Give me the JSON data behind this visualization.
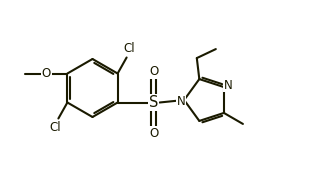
{
  "background_color": "#ffffff",
  "line_color": "#1a1a00",
  "line_width": 1.5,
  "font_size": 8.5,
  "figsize": [
    3.2,
    1.81
  ],
  "dpi": 100,
  "xlim": [
    0.0,
    6.4
  ],
  "ylim": [
    -1.4,
    2.0
  ]
}
